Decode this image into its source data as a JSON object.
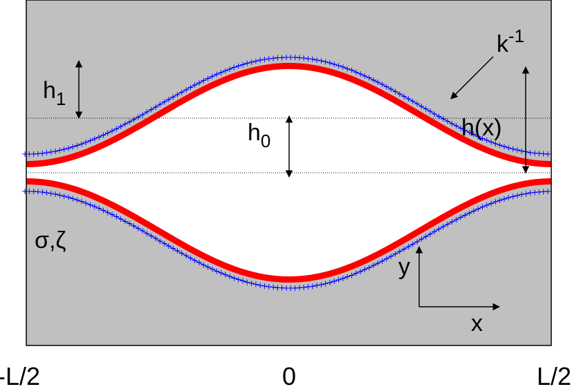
{
  "colors": {
    "solid": "#c0c0c0",
    "fluid": "#ffffff",
    "interface": "#ff0000",
    "charge_layer": "#0000ff",
    "frame": "#000000"
  },
  "labels": {
    "h1": "h",
    "h1_sub": "1",
    "h0": "h",
    "h0_sub": "0",
    "hx": "h(x)",
    "debye": "k",
    "debye_sup": "-1",
    "surface": "σ,ζ",
    "axis_y": "y",
    "axis_x": "x"
  },
  "ticks": {
    "left": "-L/2",
    "center": "0",
    "right": "L/2"
  },
  "charge_marker": "+"
}
